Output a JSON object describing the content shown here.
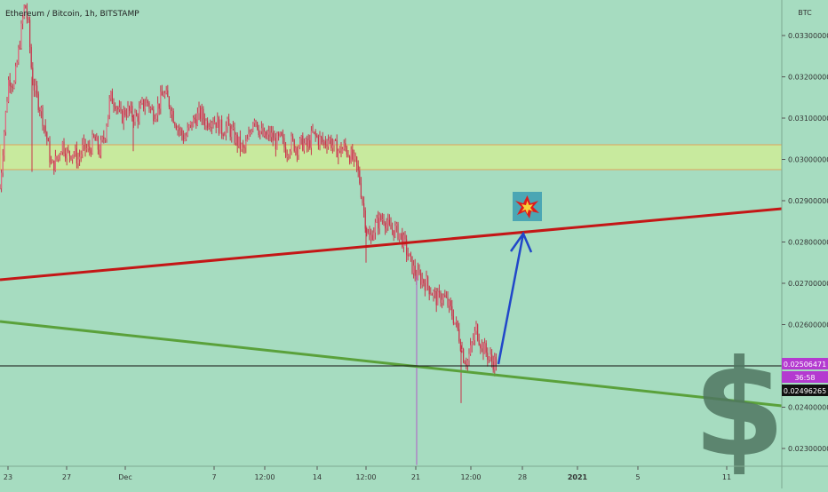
{
  "chart_data": {
    "type": "candlestick",
    "title": "Ethereum / Bitcoin, 1h, BITSTAMP",
    "currency_label": "BTC",
    "y_range": [
      0.0225,
      0.0342
    ],
    "y_ticks": [
      "0.03300000",
      "0.03200000",
      "0.03100000",
      "0.03000000",
      "0.02900000",
      "0.02800000",
      "0.02700000",
      "0.02600000",
      "0.02400000",
      "0.02300000"
    ],
    "x_ticks": [
      "23",
      "27",
      "Dec",
      "7",
      "12:00",
      "14",
      "12:00",
      "21",
      "12:00",
      "28",
      "2021",
      "5",
      "11"
    ],
    "price_series": [
      [
        0,
        0.0293
      ],
      [
        4,
        0.0305
      ],
      [
        10,
        0.032
      ],
      [
        16,
        0.0318
      ],
      [
        22,
        0.0328
      ],
      [
        28,
        0.0338
      ],
      [
        32,
        0.0332
      ],
      [
        36,
        0.032
      ],
      [
        40,
        0.0316
      ],
      [
        46,
        0.0312
      ],
      [
        52,
        0.0306
      ],
      [
        58,
        0.0298
      ],
      [
        64,
        0.03
      ],
      [
        70,
        0.0304
      ],
      [
        76,
        0.0301
      ],
      [
        82,
        0.0302
      ],
      [
        88,
        0.03
      ],
      [
        94,
        0.0303
      ],
      [
        100,
        0.0302
      ],
      [
        106,
        0.0305
      ],
      [
        112,
        0.0302
      ],
      [
        118,
        0.0306
      ],
      [
        124,
        0.0315
      ],
      [
        130,
        0.0314
      ],
      [
        136,
        0.031
      ],
      [
        142,
        0.0312
      ],
      [
        148,
        0.0311
      ],
      [
        154,
        0.031
      ],
      [
        160,
        0.0313
      ],
      [
        166,
        0.0314
      ],
      [
        172,
        0.0311
      ],
      [
        178,
        0.0313
      ],
      [
        184,
        0.0316
      ],
      [
        190,
        0.0314
      ],
      [
        196,
        0.031
      ],
      [
        202,
        0.0307
      ],
      [
        208,
        0.0305
      ],
      [
        214,
        0.0308
      ],
      [
        220,
        0.031
      ],
      [
        226,
        0.0311
      ],
      [
        232,
        0.0309
      ],
      [
        238,
        0.031
      ],
      [
        244,
        0.0309
      ],
      [
        250,
        0.0307
      ],
      [
        256,
        0.0308
      ],
      [
        262,
        0.0306
      ],
      [
        268,
        0.0304
      ],
      [
        274,
        0.0302
      ],
      [
        280,
        0.0305
      ],
      [
        286,
        0.0311
      ],
      [
        292,
        0.0307
      ],
      [
        298,
        0.0305
      ],
      [
        304,
        0.0306
      ],
      [
        310,
        0.0304
      ],
      [
        316,
        0.0305
      ],
      [
        322,
        0.0302
      ],
      [
        328,
        0.0304
      ],
      [
        334,
        0.0303
      ],
      [
        340,
        0.0304
      ],
      [
        346,
        0.0303
      ],
      [
        352,
        0.0306
      ],
      [
        358,
        0.0305
      ],
      [
        364,
        0.0304
      ],
      [
        370,
        0.0305
      ],
      [
        376,
        0.0303
      ],
      [
        382,
        0.0302
      ],
      [
        388,
        0.0303
      ],
      [
        394,
        0.0301
      ],
      [
        400,
        0.0299
      ],
      [
        404,
        0.0296
      ],
      [
        408,
        0.029
      ],
      [
        412,
        0.0284
      ],
      [
        416,
        0.028
      ],
      [
        420,
        0.0283
      ],
      [
        426,
        0.0285
      ],
      [
        432,
        0.0286
      ],
      [
        438,
        0.0283
      ],
      [
        444,
        0.0283
      ],
      [
        450,
        0.0282
      ],
      [
        456,
        0.0279
      ],
      [
        462,
        0.0275
      ],
      [
        468,
        0.0272
      ],
      [
        474,
        0.0271
      ],
      [
        480,
        0.027
      ],
      [
        486,
        0.0268
      ],
      [
        492,
        0.0266
      ],
      [
        498,
        0.0267
      ],
      [
        504,
        0.0265
      ],
      [
        510,
        0.0262
      ],
      [
        516,
        0.0258
      ],
      [
        522,
        0.0252
      ],
      [
        526,
        0.0251
      ],
      [
        530,
        0.0254
      ],
      [
        536,
        0.0259
      ],
      [
        542,
        0.0255
      ],
      [
        548,
        0.0253
      ],
      [
        554,
        0.0251
      ],
      [
        560,
        0.0251
      ]
    ],
    "extreme_wicks": [
      {
        "x": 36,
        "low": 0.0297
      },
      {
        "x": 150,
        "low": 0.0302
      },
      {
        "x": 412,
        "low": 0.0275
      },
      {
        "x": 469,
        "low": 0.0226
      },
      {
        "x": 519,
        "low": 0.0241
      }
    ],
    "current_price": "0.02506471",
    "countdown": "36:58",
    "crosshair_price": "0.02496265",
    "colors": {
      "background": "#a6dcc0",
      "candles": "#c9354a",
      "resistance_band": "#c8ea9e",
      "resistance_border": "#e0a35a",
      "upper_trendline": "#c41616",
      "lower_trendline": "#5aa13b",
      "projection_arrow": "#2147c9",
      "dollar_sign": "#4f7560"
    }
  }
}
